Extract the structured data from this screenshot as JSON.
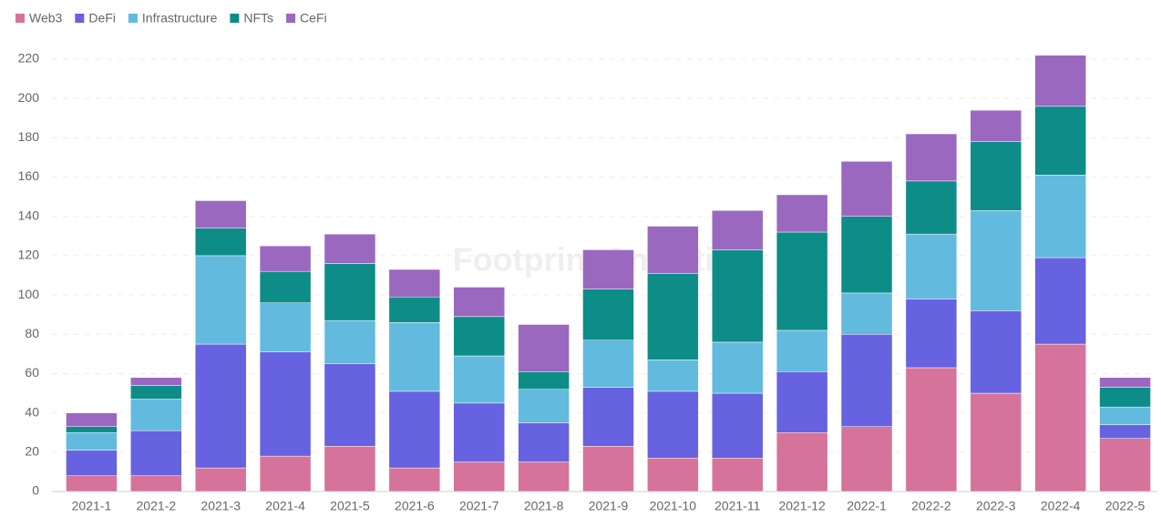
{
  "chart_data": {
    "type": "stacked_bar",
    "watermark": "Footprint Analytics",
    "categories": [
      "2021-1",
      "2021-2",
      "2021-3",
      "2021-4",
      "2021-5",
      "2021-6",
      "2021-7",
      "2021-8",
      "2021-9",
      "2021-10",
      "2021-11",
      "2021-12",
      "2022-1",
      "2022-2",
      "2022-3",
      "2022-4",
      "2022-5"
    ],
    "series": [
      {
        "name": "Web3",
        "color": "#d6739a",
        "values": [
          8,
          8,
          12,
          18,
          23,
          12,
          15,
          15,
          23,
          17,
          17,
          30,
          33,
          63,
          50,
          75,
          27
        ]
      },
      {
        "name": "DeFi",
        "color": "#6662e0",
        "values": [
          13,
          23,
          63,
          53,
          42,
          39,
          30,
          20,
          30,
          34,
          33,
          31,
          47,
          35,
          42,
          44,
          7
        ]
      },
      {
        "name": "Infrastructure",
        "color": "#62bade",
        "values": [
          9,
          16,
          45,
          25,
          22,
          35,
          24,
          17,
          24,
          16,
          26,
          21,
          21,
          33,
          51,
          42,
          9
        ]
      },
      {
        "name": "NFTs",
        "color": "#0e8c88",
        "values": [
          3,
          7,
          14,
          16,
          29,
          13,
          20,
          9,
          26,
          44,
          47,
          50,
          39,
          27,
          35,
          35,
          10
        ]
      },
      {
        "name": "CeFi",
        "color": "#9b68c0",
        "values": [
          7,
          4,
          14,
          13,
          15,
          14,
          15,
          24,
          20,
          24,
          20,
          19,
          28,
          24,
          16,
          26,
          5
        ]
      }
    ],
    "ylim": [
      0,
      220
    ],
    "yticks": [
      0,
      20,
      40,
      60,
      80,
      100,
      120,
      140,
      160,
      180,
      200,
      220
    ],
    "grid": true,
    "legend": "top-left"
  }
}
